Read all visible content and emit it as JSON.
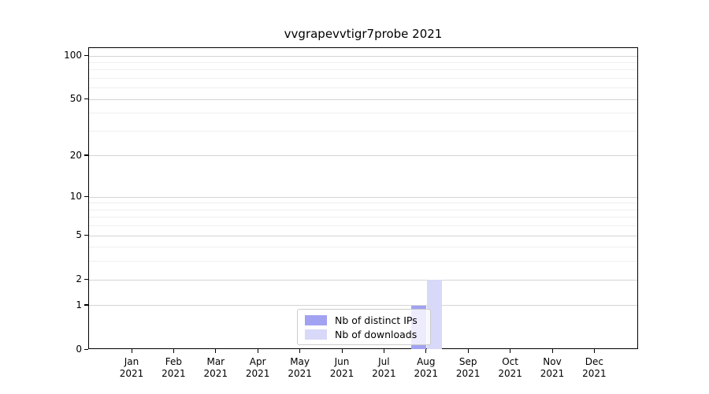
{
  "chart_data": {
    "type": "bar",
    "title": "vvgrapevvtigr7probe 2021",
    "year_label": "2021",
    "categories": [
      "Jan",
      "Feb",
      "Mar",
      "Apr",
      "May",
      "Jun",
      "Jul",
      "Aug",
      "Sep",
      "Oct",
      "Nov",
      "Dec"
    ],
    "series": [
      {
        "name": "Nb of distinct IPs",
        "color": "#a2a2f2",
        "values": [
          0,
          0,
          0,
          0,
          0,
          0,
          0,
          1,
          0,
          0,
          0,
          0
        ]
      },
      {
        "name": "Nb of downloads",
        "color": "#d8d8f8",
        "values": [
          0,
          0,
          0,
          0,
          0,
          0,
          0,
          2,
          0,
          0,
          0,
          0
        ]
      }
    ],
    "y_axis": {
      "scale": "log1p",
      "ticks": [
        0,
        1,
        2,
        5,
        10,
        20,
        50,
        100
      ],
      "minor_ticks": [
        3,
        4,
        6,
        7,
        8,
        9,
        30,
        40,
        60,
        70,
        80,
        90
      ],
      "ylim": [
        0,
        113
      ]
    },
    "x_axis": {
      "tick_label_lines": 2
    },
    "grid": {
      "major_color": "#d4d4d4",
      "minor_color": "#efefef"
    },
    "legend": {
      "position": "inside-bottom-center",
      "border_color": "#cccccc"
    },
    "colors": {
      "axis": "#000000",
      "background": "#ffffff",
      "text": "#000000"
    }
  }
}
